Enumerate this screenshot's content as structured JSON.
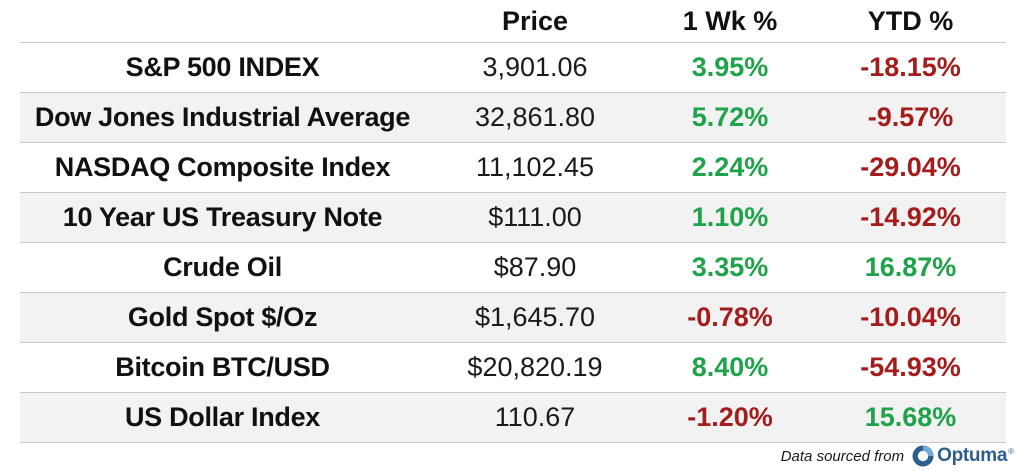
{
  "table": {
    "headers": {
      "name": "",
      "price": "Price",
      "week": "1 Wk %",
      "ytd": "YTD %"
    },
    "rows": [
      {
        "name": "S&P 500 INDEX",
        "price": "3,901.06",
        "week": "3.95%",
        "ytd": "-18.15%"
      },
      {
        "name": "Dow Jones Industrial Average",
        "price": "32,861.80",
        "week": "5.72%",
        "ytd": "-9.57%"
      },
      {
        "name": "NASDAQ Composite Index",
        "price": "11,102.45",
        "week": "2.24%",
        "ytd": "-29.04%"
      },
      {
        "name": "10 Year US Treasury Note",
        "price": "$111.00",
        "week": "1.10%",
        "ytd": "-14.92%"
      },
      {
        "name": "Crude Oil",
        "price": "$87.90",
        "week": "3.35%",
        "ytd": "16.87%"
      },
      {
        "name": "Gold Spot $/Oz",
        "price": "$1,645.70",
        "week": "-0.78%",
        "ytd": "-10.04%"
      },
      {
        "name": "Bitcoin BTC/USD",
        "price": "$20,820.19",
        "week": "8.40%",
        "ytd": "-54.93%"
      },
      {
        "name": "US Dollar Index",
        "price": "110.67",
        "week": "-1.20%",
        "ytd": "15.68%"
      }
    ]
  },
  "footer": {
    "source_text": "Data sourced from",
    "logo_text": "Optuma",
    "logo_tm": "®"
  },
  "colors": {
    "positive": "#1fa34a",
    "negative": "#a31d1d",
    "logo": "#2d5f8e",
    "zebra": "#f2f2f2"
  }
}
